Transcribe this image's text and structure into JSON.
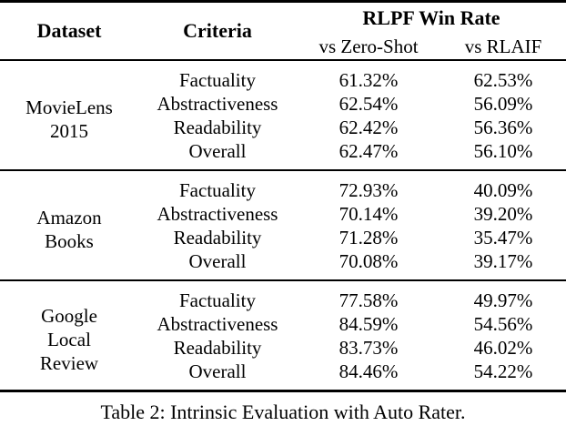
{
  "colors": {
    "text": "#000000",
    "background": "#ffffff",
    "rule": "#000000"
  },
  "table": {
    "headers": {
      "dataset": "Dataset",
      "criteria": "Criteria",
      "win_rate_group": "RLPF Win Rate",
      "col_zero_shot": "vs Zero-Shot",
      "col_rlaif": "vs RLAIF"
    },
    "groups": [
      {
        "dataset_lines": [
          "MovieLens",
          "2015"
        ],
        "rows": [
          {
            "criteria": "Factuality",
            "zero_shot": "61.32%",
            "rlaif": "62.53%"
          },
          {
            "criteria": "Abstractiveness",
            "zero_shot": "62.54%",
            "rlaif": "56.09%"
          },
          {
            "criteria": "Readability",
            "zero_shot": "62.42%",
            "rlaif": "56.36%"
          },
          {
            "criteria": "Overall",
            "zero_shot": "62.47%",
            "rlaif": "56.10%"
          }
        ]
      },
      {
        "dataset_lines": [
          "Amazon",
          "Books"
        ],
        "rows": [
          {
            "criteria": "Factuality",
            "zero_shot": "72.93%",
            "rlaif": "40.09%"
          },
          {
            "criteria": "Abstractiveness",
            "zero_shot": "70.14%",
            "rlaif": "39.20%"
          },
          {
            "criteria": "Readability",
            "zero_shot": "71.28%",
            "rlaif": "35.47%"
          },
          {
            "criteria": "Overall",
            "zero_shot": "70.08%",
            "rlaif": "39.17%"
          }
        ]
      },
      {
        "dataset_lines": [
          "Google",
          "Local",
          "Review"
        ],
        "rows": [
          {
            "criteria": "Factuality",
            "zero_shot": "77.58%",
            "rlaif": "49.97%"
          },
          {
            "criteria": "Abstractiveness",
            "zero_shot": "84.59%",
            "rlaif": "54.56%"
          },
          {
            "criteria": "Readability",
            "zero_shot": "83.73%",
            "rlaif": "46.02%"
          },
          {
            "criteria": "Overall",
            "zero_shot": "84.46%",
            "rlaif": "54.22%"
          }
        ]
      }
    ],
    "caption": "Table 2: Intrinsic Evaluation with Auto Rater."
  }
}
